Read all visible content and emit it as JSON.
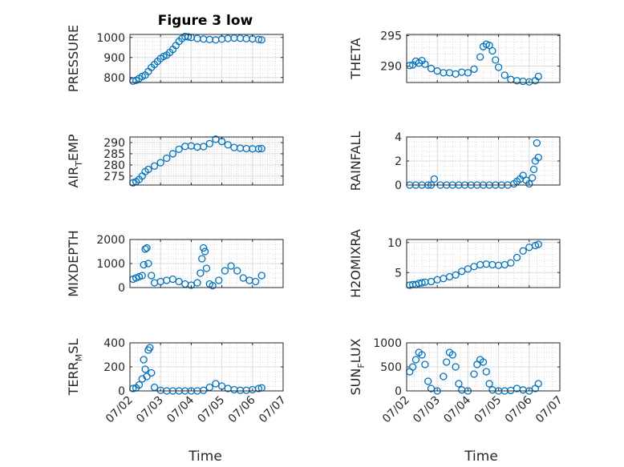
{
  "figure": {
    "title": "Figure 3 low",
    "marker_color": "#0072BD"
  },
  "chart_data": [
    {
      "type": "scatter",
      "ylabel": "PRESSURE",
      "ylabel_sub": "",
      "ylabel_tail": "",
      "ylim": [
        775,
        1015
      ],
      "yticks": [
        800,
        900,
        1000
      ],
      "yticklabels": [
        "800",
        "900",
        "1000"
      ],
      "x": [
        2.1,
        2.2,
        2.3,
        2.4,
        2.5,
        2.6,
        2.7,
        2.8,
        2.9,
        3.0,
        3.1,
        3.2,
        3.3,
        3.4,
        3.5,
        3.6,
        3.7,
        3.8,
        3.9,
        4.0,
        4.2,
        4.4,
        4.6,
        4.8,
        5.0,
        5.2,
        5.4,
        5.6,
        5.8,
        6.0,
        6.2,
        6.3
      ],
      "y": [
        782,
        786,
        795,
        805,
        812,
        830,
        850,
        865,
        880,
        895,
        905,
        912,
        925,
        940,
        960,
        980,
        995,
        1005,
        1003,
        1000,
        995,
        992,
        990,
        988,
        992,
        995,
        997,
        996,
        994,
        993,
        990,
        988
      ]
    },
    {
      "type": "scatter",
      "ylabel": "THETA",
      "ylabel_sub": "",
      "ylabel_tail": "",
      "ylim": [
        287.3,
        295.2
      ],
      "yticks": [
        290,
        295
      ],
      "yticklabels": [
        "290",
        "295"
      ],
      "x": [
        2.1,
        2.2,
        2.3,
        2.4,
        2.5,
        2.6,
        2.8,
        3.0,
        3.2,
        3.4,
        3.6,
        3.8,
        4.0,
        4.2,
        4.4,
        4.5,
        4.6,
        4.7,
        4.8,
        4.9,
        5.0,
        5.2,
        5.4,
        5.6,
        5.8,
        6.0,
        6.2,
        6.3
      ],
      "y": [
        290.1,
        290.2,
        290.8,
        290.5,
        290.9,
        290.3,
        289.6,
        289.2,
        288.9,
        288.9,
        288.7,
        289.0,
        288.9,
        289.5,
        291.5,
        293.2,
        293.6,
        293.4,
        292.5,
        291.0,
        289.8,
        288.5,
        287.8,
        287.6,
        287.5,
        287.4,
        287.6,
        288.3
      ]
    },
    {
      "type": "scatter",
      "ylabel": "AIR",
      "ylabel_sub": "T",
      "ylabel_tail": "EMP",
      "ylim": [
        271,
        292.5
      ],
      "yticks": [
        275,
        280,
        285,
        290
      ],
      "yticklabels": [
        "275",
        "280",
        "285",
        "290"
      ],
      "x": [
        2.1,
        2.2,
        2.3,
        2.4,
        2.5,
        2.6,
        2.8,
        3.0,
        3.2,
        3.4,
        3.6,
        3.8,
        4.0,
        4.2,
        4.4,
        4.6,
        4.8,
        5.0,
        5.2,
        5.4,
        5.6,
        5.8,
        6.0,
        6.2,
        6.3
      ],
      "y": [
        272,
        272.5,
        273.5,
        275,
        277,
        278,
        279.5,
        281,
        283,
        285,
        287,
        288.3,
        288.5,
        288,
        288.2,
        289.5,
        291.5,
        290.5,
        289,
        287.8,
        287.5,
        287.3,
        287.2,
        287.2,
        287.3
      ]
    },
    {
      "type": "scatter",
      "ylabel": "RAINFALL",
      "ylabel_sub": "",
      "ylabel_tail": "",
      "ylim": [
        0,
        4
      ],
      "yticks": [
        0,
        2,
        4
      ],
      "yticklabels": [
        "0",
        "2",
        "4"
      ],
      "x": [
        2.1,
        2.3,
        2.5,
        2.7,
        2.8,
        2.9,
        3.1,
        3.3,
        3.5,
        3.7,
        3.9,
        4.1,
        4.3,
        4.5,
        4.7,
        4.9,
        5.1,
        5.3,
        5.5,
        5.6,
        5.7,
        5.8,
        5.9,
        6.0,
        6.1,
        6.15,
        6.2,
        6.25,
        6.3
      ],
      "y": [
        0,
        0,
        0,
        0,
        0,
        0.5,
        0,
        0,
        0,
        0,
        0,
        0,
        0,
        0,
        0,
        0,
        0,
        0,
        0.1,
        0.3,
        0.5,
        0.8,
        0.4,
        0.1,
        0.6,
        1.3,
        2.0,
        3.5,
        2.3
      ]
    },
    {
      "type": "scatter",
      "ylabel": "MIXDEPTH",
      "ylabel_sub": "",
      "ylabel_tail": "",
      "ylim": [
        0,
        2000
      ],
      "yticks": [
        0,
        1000,
        2000
      ],
      "yticklabels": [
        "0",
        "1000",
        "2000"
      ],
      "x": [
        2.1,
        2.2,
        2.3,
        2.4,
        2.45,
        2.5,
        2.55,
        2.6,
        2.7,
        2.8,
        3.0,
        3.2,
        3.4,
        3.6,
        3.8,
        4.0,
        4.2,
        4.3,
        4.35,
        4.4,
        4.45,
        4.5,
        4.6,
        4.7,
        4.9,
        5.1,
        5.3,
        5.5,
        5.7,
        5.9,
        6.1,
        6.3
      ],
      "y": [
        350,
        400,
        450,
        500,
        950,
        1600,
        1650,
        1000,
        500,
        200,
        250,
        300,
        350,
        250,
        150,
        100,
        200,
        600,
        1200,
        1650,
        1500,
        800,
        150,
        80,
        300,
        700,
        900,
        700,
        400,
        300,
        250,
        500
      ]
    },
    {
      "type": "scatter",
      "ylabel": "H2OMIXRA",
      "ylabel_sub": "",
      "ylabel_tail": "",
      "ylim": [
        2.5,
        10.5
      ],
      "yticks": [
        5,
        10
      ],
      "yticklabels": [
        "5",
        "10"
      ],
      "x": [
        2.1,
        2.2,
        2.3,
        2.4,
        2.5,
        2.6,
        2.8,
        3.0,
        3.2,
        3.4,
        3.6,
        3.8,
        4.0,
        4.2,
        4.4,
        4.6,
        4.8,
        5.0,
        5.2,
        5.4,
        5.6,
        5.8,
        6.0,
        6.2,
        6.3
      ],
      "y": [
        2.9,
        3.0,
        3.0,
        3.2,
        3.3,
        3.4,
        3.5,
        3.8,
        4.0,
        4.3,
        4.6,
        5.2,
        5.6,
        6.0,
        6.3,
        6.4,
        6.3,
        6.2,
        6.3,
        6.6,
        7.5,
        8.6,
        9.2,
        9.5,
        9.7
      ]
    },
    {
      "type": "scatter",
      "ylabel": "TERR",
      "ylabel_sub": "M",
      "ylabel_tail": "SL",
      "ylim": [
        0,
        400
      ],
      "yticks": [
        0,
        200,
        400
      ],
      "yticklabels": [
        "0",
        "200",
        "400"
      ],
      "x": [
        2.1,
        2.2,
        2.3,
        2.4,
        2.45,
        2.5,
        2.55,
        2.6,
        2.65,
        2.7,
        2.8,
        3.0,
        3.2,
        3.4,
        3.6,
        3.8,
        4.0,
        4.2,
        4.4,
        4.6,
        4.8,
        5.0,
        5.2,
        5.4,
        5.6,
        5.8,
        6.0,
        6.2,
        6.3
      ],
      "y": [
        20,
        25,
        50,
        100,
        260,
        180,
        120,
        340,
        360,
        150,
        30,
        5,
        0,
        0,
        0,
        0,
        0,
        0,
        5,
        30,
        60,
        40,
        20,
        10,
        5,
        5,
        10,
        20,
        25
      ]
    },
    {
      "type": "scatter",
      "ylabel": "SUN",
      "ylabel_sub": "F",
      "ylabel_tail": "LUX",
      "ylim": [
        0,
        1000
      ],
      "yticks": [
        0,
        500,
        1000
      ],
      "yticklabels": [
        "0",
        "500",
        "1000"
      ],
      "x": [
        2.1,
        2.2,
        2.3,
        2.4,
        2.5,
        2.6,
        2.7,
        2.8,
        3.0,
        3.2,
        3.3,
        3.4,
        3.5,
        3.6,
        3.7,
        3.8,
        4.0,
        4.2,
        4.3,
        4.4,
        4.5,
        4.6,
        4.7,
        4.8,
        5.0,
        5.2,
        5.4,
        5.6,
        5.8,
        6.0,
        6.2,
        6.3
      ],
      "y": [
        400,
        500,
        650,
        800,
        750,
        550,
        200,
        50,
        0,
        300,
        600,
        800,
        750,
        500,
        150,
        20,
        0,
        350,
        550,
        650,
        600,
        400,
        150,
        20,
        0,
        0,
        10,
        50,
        20,
        0,
        50,
        150
      ]
    }
  ],
  "xaxis": {
    "label": "Time",
    "xlim": [
      2,
      7
    ],
    "ticks": [
      2,
      3,
      4,
      5,
      6,
      7
    ],
    "ticklabels": [
      "07/02",
      "07/03",
      "07/04",
      "07/05",
      "07/06",
      "07/07"
    ]
  }
}
